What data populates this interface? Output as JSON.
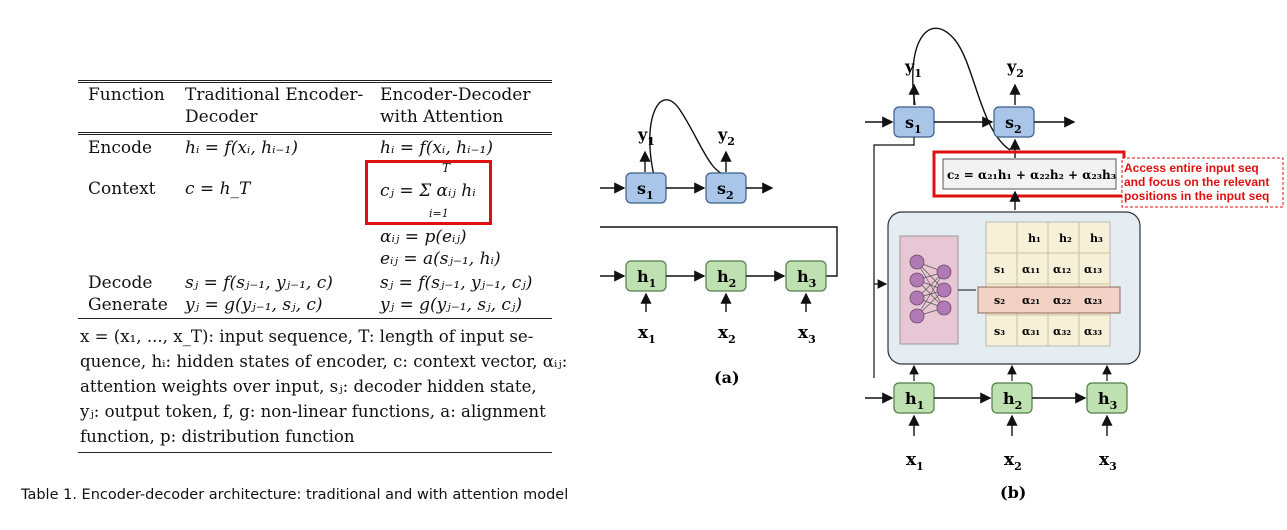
{
  "table": {
    "headers": {
      "function": "Function",
      "traditional_l1": "Traditional Encoder-",
      "traditional_l2": "Decoder",
      "attention_l1": "Encoder-Decoder",
      "attention_l2": "with Attention"
    },
    "rows": {
      "encode": {
        "label": "Encode",
        "trad": "hᵢ = f(xᵢ, hᵢ₋₁)",
        "attn": "hᵢ = f(xᵢ, hᵢ₋₁)"
      },
      "context": {
        "label": "Context",
        "trad": "c = h_T",
        "attn": "cⱼ = Σ αᵢⱼ hᵢ",
        "sum_top": "T",
        "sum_bottom": "i=1"
      },
      "alpha": {
        "attn": "αᵢⱼ = p(eᵢⱼ)"
      },
      "e": {
        "attn": "eᵢⱼ = a(sⱼ₋₁, hᵢ)"
      },
      "decode": {
        "label": "Decode",
        "trad": "sⱼ = f(sⱼ₋₁, yⱼ₋₁, c)",
        "attn": "sⱼ = f(sⱼ₋₁, yⱼ₋₁, cⱼ)"
      },
      "generate": {
        "label": "Generate",
        "trad": "yⱼ = g(yⱼ₋₁, sⱼ, c)",
        "attn": "yⱼ = g(yⱼ₋₁, sⱼ, cⱼ)"
      }
    },
    "footnote": [
      "x = (x₁, ..., x_T): input sequence, T: length of input se-",
      "quence, hᵢ: hidden states of encoder, c: context vector, αᵢⱼ:",
      "attention weights over input, sⱼ: decoder hidden state,",
      "yⱼ: output token, f, g: non-linear functions, a: alignment",
      "function, p: distribution function"
    ],
    "caption": "Table 1. Encoder-decoder architecture: traditional and with attention model",
    "highlight_color": "#e01010"
  },
  "diagram_a": {
    "outputs": [
      "y",
      "y"
    ],
    "output_subs": [
      "1",
      "2"
    ],
    "decoder": [
      "s",
      "s"
    ],
    "decoder_subs": [
      "1",
      "2"
    ],
    "encoder": [
      "h",
      "h",
      "h"
    ],
    "encoder_subs": [
      "1",
      "2",
      "3"
    ],
    "inputs": [
      "x",
      "x",
      "x"
    ],
    "input_subs": [
      "1",
      "2",
      "3"
    ],
    "label": "(a)"
  },
  "diagram_b": {
    "outputs": [
      "y",
      "y"
    ],
    "output_subs": [
      "1",
      "2"
    ],
    "decoder": [
      "s",
      "s"
    ],
    "decoder_subs": [
      "1",
      "2"
    ],
    "context_formula": "c₂ = α₂₁h₁ + α₂₂h₂ + α₂₃h₃",
    "matrix": {
      "col_headers": [
        "h₁",
        "h₂",
        "h₃"
      ],
      "row_headers": [
        "s₁",
        "s₂",
        "s₃"
      ],
      "cells": [
        [
          "α₁₁",
          "α₁₂",
          "α₁₃"
        ],
        [
          "α₂₁",
          "α₂₂",
          "α₂₃"
        ],
        [
          "α₃₁",
          "α₃₂",
          "α₃₃"
        ]
      ],
      "highlighted_row": 2
    },
    "encoder": [
      "h",
      "h",
      "h"
    ],
    "encoder_subs": [
      "1",
      "2",
      "3"
    ],
    "inputs": [
      "x",
      "x",
      "x"
    ],
    "input_subs": [
      "1",
      "2",
      "3"
    ],
    "label": "(b)",
    "annotation": [
      "Access entire input seq",
      "and focus on the relevant",
      "positions in the input seq"
    ],
    "colors": {
      "decoder": "#a9c6e8",
      "encoder": "#bfe0b0",
      "panel": "#e4ebf1",
      "network": "#e8c6d4",
      "matrix": "#f6f0d8",
      "highlight": "#f3cfc4"
    }
  }
}
